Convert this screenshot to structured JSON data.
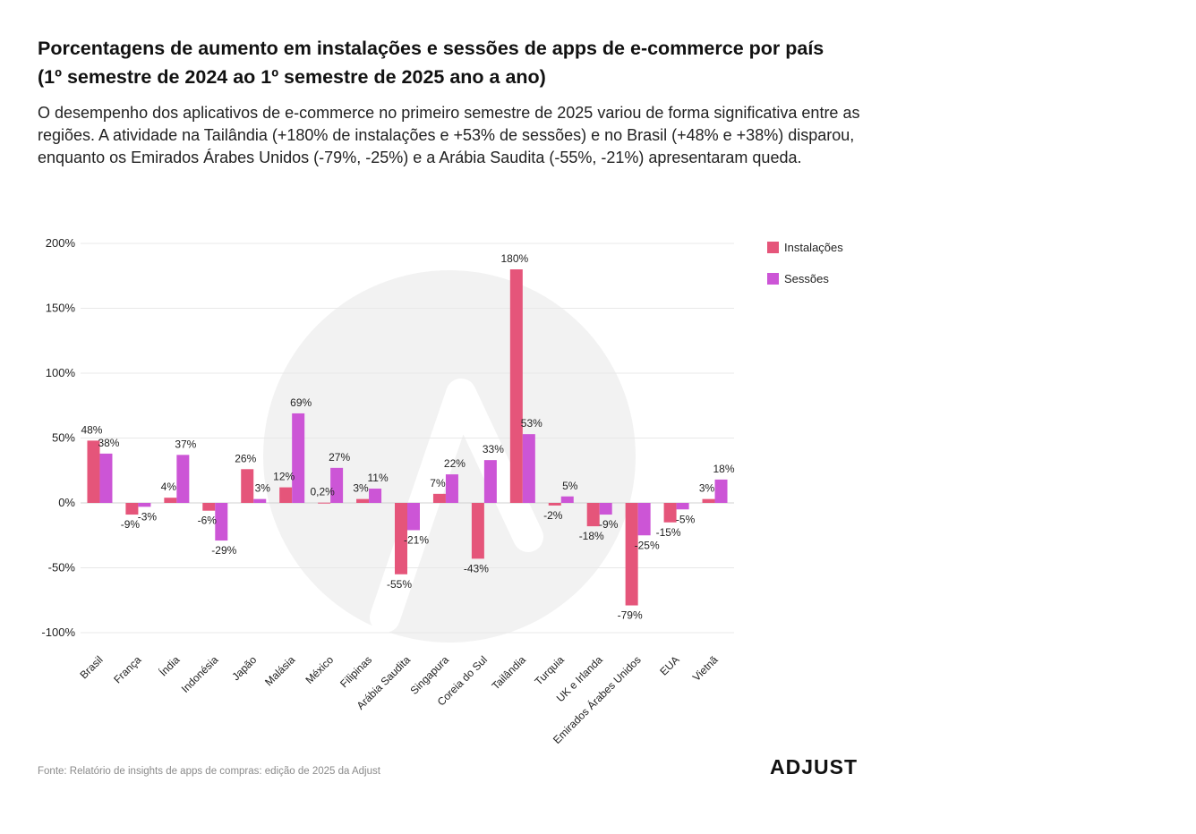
{
  "title": "Porcentagens de aumento em instalações e sessões de apps de e-commerce por país (1º semestre de 2024 ao 1º semestre de 2025 ano a ano)",
  "subtitle": "O desempenho dos aplicativos de e-commerce no primeiro semestre de 2025 variou de forma significativa entre as regiões. A atividade na Tailândia (+180% de instalações e +53% de sessões) e no Brasil (+48% e +38%) disparou, enquanto os Emirados Árabes Unidos (-79%, -25%) e a Arábia Saudita (-55%, -21%) apresentaram queda.",
  "source": "Fonte: Relatório de insights de apps de compras: edição de 2025 da Adjust",
  "logo": "ADJUST",
  "chart_data": {
    "type": "bar",
    "categories": [
      "Brasil",
      "França",
      "Índia",
      "Indonésia",
      "Japão",
      "Malásia",
      "México",
      "Filipinas",
      "Arábia Saudita",
      "Singapura",
      "Coreia do Sul",
      "Tailândia",
      "Turquia",
      "UK e Irlanda",
      "Emirados Árabes Unidos",
      "EUA",
      "Vietnã"
    ],
    "series": [
      {
        "name": "Instalações",
        "color": "#e5557a",
        "values": [
          48,
          -9,
          4,
          -6,
          26,
          12,
          0.2,
          3,
          -55,
          7,
          -43,
          180,
          -2,
          -18,
          -79,
          -15,
          3
        ],
        "labels": [
          "48%",
          "-9%",
          "4%",
          "-6%",
          "26%",
          "12%",
          "0,2%",
          "3%",
          "-55%",
          "7%",
          "-43%",
          "180%",
          "-2%",
          "-18%",
          "-79%",
          "-15%",
          "3%"
        ]
      },
      {
        "name": "Sessões",
        "color": "#cc55d6",
        "values": [
          38,
          -3,
          37,
          -29,
          3,
          69,
          27,
          11,
          -21,
          22,
          33,
          53,
          5,
          -9,
          -25,
          -5,
          18
        ],
        "labels": [
          "38%",
          "-3%",
          "37%",
          "-29%",
          "3%",
          "69%",
          "27%",
          "11%",
          "-21%",
          "22%",
          "33%",
          "53%",
          "5%",
          "-9%",
          "-25%",
          "-5%",
          "18%"
        ]
      }
    ],
    "y_ticks": [
      200,
      150,
      100,
      50,
      0,
      -50,
      -100
    ],
    "y_tick_labels": [
      "200%",
      "150%",
      "100%",
      "50%",
      "0%",
      "-50%",
      "-100%"
    ],
    "ylim": [
      -100,
      200
    ],
    "grid": true,
    "legend_position": "top-right",
    "xlabel": "",
    "ylabel": ""
  }
}
